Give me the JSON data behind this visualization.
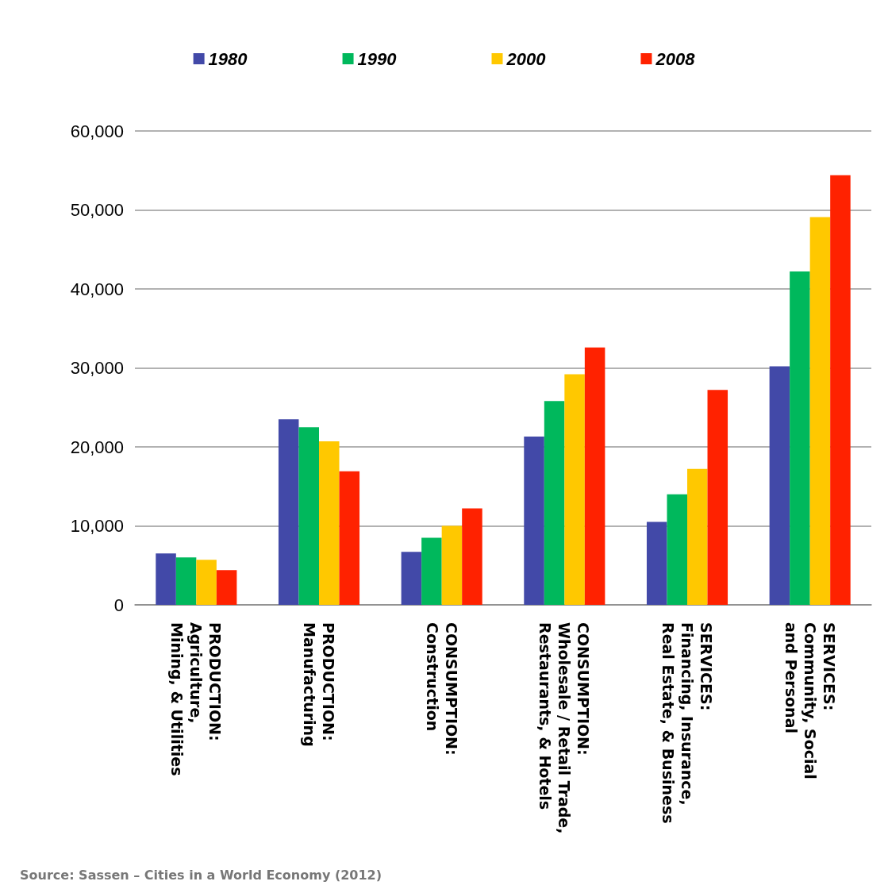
{
  "chart_data": {
    "type": "bar",
    "categories": [
      "PRODUCTION:\nAgriculture,\nMining, & Utilities",
      "PRODUCTION:\nManufacturing",
      "CONSUMPTION:\nConstruction",
      "CONSUMPTION:\nWholesale / Retail Trade,\nRestaurants, & Hotels",
      "SERVICES:\nFinancing, Insurance,\nReal Estate, & Business",
      "SERVICES:\nCommunity, Social\nand Personal"
    ],
    "series": [
      {
        "name": "1980",
        "color": "#4249a8",
        "values": [
          6500,
          23500,
          6700,
          21300,
          10500,
          30200
        ]
      },
      {
        "name": "1990",
        "color": "#00b85c",
        "values": [
          6000,
          22500,
          8500,
          25800,
          14000,
          42200
        ]
      },
      {
        "name": "2000",
        "color": "#ffc800",
        "values": [
          5700,
          20700,
          10000,
          29200,
          17200,
          49100
        ]
      },
      {
        "name": "2008",
        "color": "#ff2200",
        "values": [
          4400,
          16900,
          12200,
          32600,
          27200,
          54400
        ]
      }
    ],
    "ylim": [
      0,
      60000
    ],
    "yticks": [
      0,
      {
        "value": 10000,
        "label": "10,000"
      },
      {
        "value": 20000,
        "label": "20,000"
      },
      {
        "value": 30000,
        "label": "30,000"
      },
      {
        "value": 40000,
        "label": "40,000"
      },
      {
        "value": 50000,
        "label": "50,000"
      },
      {
        "value": 60000,
        "label": "60,000"
      }
    ],
    "grid": "y",
    "legend": "top",
    "annotations": [
      "Source: Sassen – Cities in a World Economy (2012)"
    ]
  }
}
